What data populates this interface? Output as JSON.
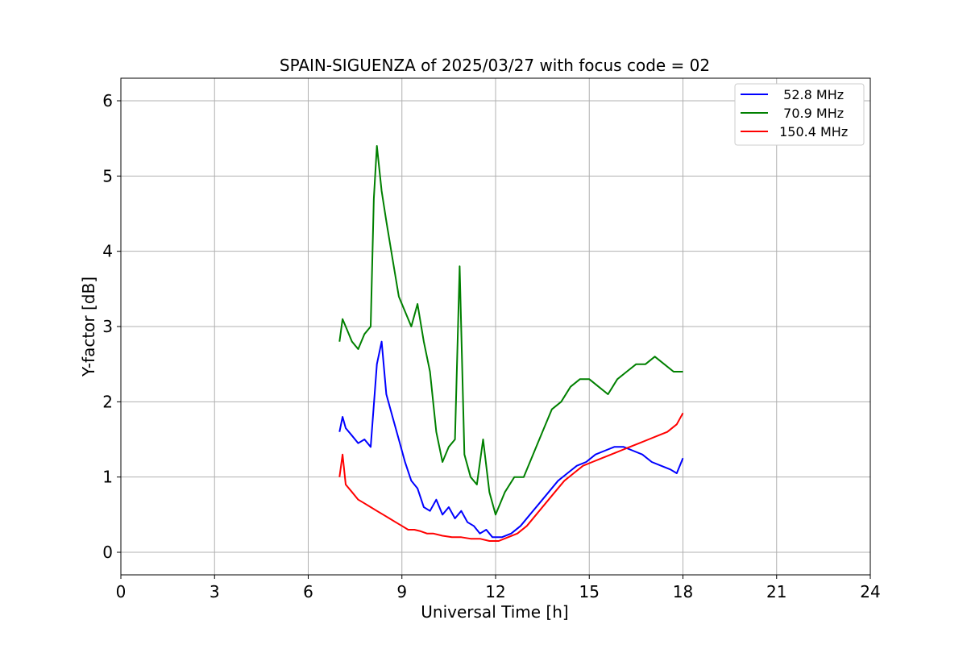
{
  "chart_data": {
    "type": "line",
    "title": "SPAIN-SIGUENZA of 2025/03/27 with focus code = 02",
    "xlabel": "Universal Time [h]",
    "ylabel": "Y-factor [dB]",
    "xlim": [
      0,
      24
    ],
    "ylim": [
      -0.3,
      6.3
    ],
    "xticks": [
      0,
      3,
      6,
      9,
      12,
      15,
      18,
      21,
      24
    ],
    "yticks": [
      0,
      1,
      2,
      3,
      4,
      5,
      6
    ],
    "xtick_labels": [
      "0",
      "3",
      "6",
      "9",
      "12",
      "15",
      "18",
      "21",
      "24"
    ],
    "ytick_labels": [
      "0",
      "1",
      "2",
      "3",
      "4",
      "5",
      "6"
    ],
    "grid": true,
    "legend_position": "top-right",
    "legend_labels": [
      "  52.8 MHz",
      "  70.9 MHz",
      " 150.4 MHz"
    ],
    "series": [
      {
        "name": "  52.8 MHz",
        "color": "#0000ff",
        "x": [
          7.0,
          7.1,
          7.2,
          7.4,
          7.6,
          7.8,
          8.0,
          8.2,
          8.35,
          8.5,
          8.7,
          8.9,
          9.1,
          9.3,
          9.5,
          9.7,
          9.9,
          10.1,
          10.3,
          10.5,
          10.7,
          10.9,
          11.1,
          11.3,
          11.5,
          11.7,
          11.9,
          12.2,
          12.5,
          12.8,
          13.1,
          13.4,
          13.7,
          14.0,
          14.3,
          14.6,
          14.9,
          15.2,
          15.5,
          15.8,
          16.1,
          16.4,
          16.7,
          17.0,
          17.3,
          17.6,
          17.8,
          18.0
        ],
        "y": [
          1.6,
          1.8,
          1.65,
          1.55,
          1.45,
          1.5,
          1.4,
          2.5,
          2.8,
          2.1,
          1.8,
          1.5,
          1.2,
          0.95,
          0.85,
          0.6,
          0.55,
          0.7,
          0.5,
          0.6,
          0.45,
          0.55,
          0.4,
          0.35,
          0.25,
          0.3,
          0.2,
          0.2,
          0.25,
          0.35,
          0.5,
          0.65,
          0.8,
          0.95,
          1.05,
          1.15,
          1.2,
          1.3,
          1.35,
          1.4,
          1.4,
          1.35,
          1.3,
          1.2,
          1.15,
          1.1,
          1.05,
          1.25
        ]
      },
      {
        "name": "  70.9 MHz",
        "color": "#008000",
        "x": [
          7.0,
          7.1,
          7.2,
          7.4,
          7.6,
          7.8,
          8.0,
          8.1,
          8.2,
          8.35,
          8.5,
          8.7,
          8.9,
          9.1,
          9.3,
          9.5,
          9.7,
          9.9,
          10.1,
          10.3,
          10.5,
          10.7,
          10.85,
          11.0,
          11.2,
          11.4,
          11.6,
          11.8,
          12.0,
          12.3,
          12.6,
          12.9,
          13.2,
          13.5,
          13.8,
          14.1,
          14.4,
          14.7,
          15.0,
          15.3,
          15.6,
          15.9,
          16.2,
          16.5,
          16.8,
          17.1,
          17.4,
          17.7,
          18.0
        ],
        "y": [
          2.8,
          3.1,
          3.0,
          2.8,
          2.7,
          2.9,
          3.0,
          4.7,
          5.4,
          4.8,
          4.4,
          3.9,
          3.4,
          3.2,
          3.0,
          3.3,
          2.8,
          2.4,
          1.6,
          1.2,
          1.4,
          1.5,
          3.8,
          1.3,
          1.0,
          0.9,
          1.5,
          0.8,
          0.5,
          0.8,
          1.0,
          1.0,
          1.3,
          1.6,
          1.9,
          2.0,
          2.2,
          2.3,
          2.3,
          2.2,
          2.1,
          2.3,
          2.4,
          2.5,
          2.5,
          2.6,
          2.5,
          2.4,
          2.4
        ]
      },
      {
        "name": " 150.4 MHz",
        "color": "#ff0000",
        "x": [
          7.0,
          7.1,
          7.2,
          7.4,
          7.6,
          7.8,
          8.0,
          8.2,
          8.4,
          8.6,
          8.8,
          9.0,
          9.2,
          9.4,
          9.6,
          9.8,
          10.0,
          10.3,
          10.6,
          10.9,
          11.2,
          11.5,
          11.8,
          12.1,
          12.4,
          12.7,
          13.0,
          13.3,
          13.6,
          13.9,
          14.2,
          14.5,
          14.8,
          15.1,
          15.4,
          15.7,
          16.0,
          16.3,
          16.6,
          16.9,
          17.2,
          17.5,
          17.8,
          18.0
        ],
        "y": [
          1.0,
          1.3,
          0.9,
          0.8,
          0.7,
          0.65,
          0.6,
          0.55,
          0.5,
          0.45,
          0.4,
          0.35,
          0.3,
          0.3,
          0.28,
          0.25,
          0.25,
          0.22,
          0.2,
          0.2,
          0.18,
          0.18,
          0.15,
          0.15,
          0.2,
          0.25,
          0.35,
          0.5,
          0.65,
          0.8,
          0.95,
          1.05,
          1.15,
          1.2,
          1.25,
          1.3,
          1.35,
          1.4,
          1.45,
          1.5,
          1.55,
          1.6,
          1.7,
          1.85
        ]
      }
    ]
  }
}
